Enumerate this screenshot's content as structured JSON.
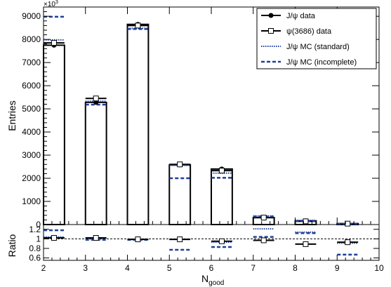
{
  "chart_data": [
    {
      "type": "bar",
      "panel": "main",
      "ylabel": "Entries",
      "yscale_label": "×10³",
      "xlim": [
        2,
        10
      ],
      "ylim": [
        0,
        9.4
      ],
      "x_ticks": [
        "2",
        "3",
        "4",
        "5",
        "6",
        "7",
        "8",
        "9",
        "10"
      ],
      "y_ticks": [
        "0",
        "1000",
        "2000",
        "3000",
        "4000",
        "5000",
        "6000",
        "7000",
        "8000",
        "9000"
      ],
      "categories": [
        "2",
        "3",
        "4",
        "5",
        "6",
        "7",
        "8",
        "9"
      ],
      "legend_position": "top-right",
      "series": [
        {
          "name": "J/ψ data",
          "marker": "filled-circle",
          "values": [
            7.75,
            5.28,
            8.65,
            2.58,
            2.4,
            0.3,
            0.16,
            0.04
          ]
        },
        {
          "name": "ψ(3686) data",
          "marker": "open-square",
          "values": [
            7.85,
            5.45,
            8.6,
            2.6,
            2.33,
            0.3,
            0.14,
            0.04
          ]
        },
        {
          "name": "J/ψ MC (standard)",
          "style": "dotted",
          "color": "#1f3f9a",
          "values": [
            7.98,
            5.33,
            8.48,
            2.56,
            2.22,
            0.37,
            0.18,
            0.04
          ]
        },
        {
          "name": "J/ψ MC (incomplete)",
          "style": "dashed",
          "color": "#1f3f9a",
          "values": [
            8.98,
            5.18,
            8.45,
            2.0,
            2.02,
            0.35,
            0.16,
            0.03
          ]
        }
      ]
    },
    {
      "type": "scatter",
      "panel": "ratio",
      "xlabel": "N_good",
      "ylabel": "Ratio",
      "xlim": [
        2,
        10
      ],
      "ylim": [
        0.55,
        1.3
      ],
      "y_ticks": [
        "0.6",
        "0.8",
        "1",
        "1.2"
      ],
      "reference_line": 1.0,
      "x": [
        2.25,
        3.25,
        4.25,
        5.25,
        6.25,
        7.25,
        8.25,
        9.25
      ],
      "series": [
        {
          "name": "ψ(3686) data",
          "marker": "open-square",
          "values": [
            1.02,
            1.02,
            0.99,
            0.99,
            0.95,
            0.97,
            0.89,
            0.93
          ]
        },
        {
          "name": "J/ψ MC (standard)",
          "style": "dotted",
          "color": "#1f3f9a",
          "values": [
            1.04,
            1.0,
            0.99,
            0.99,
            0.93,
            1.21,
            1.14,
            0.91
          ]
        },
        {
          "name": "J/ψ MC (incomplete)",
          "style": "dashed",
          "color": "#1f3f9a",
          "values": [
            1.18,
            0.98,
            0.98,
            0.77,
            0.83,
            1.04,
            1.12,
            0.67
          ]
        }
      ]
    }
  ],
  "axis_labels": {
    "main_y": "Entries",
    "ratio_y": "Ratio",
    "x_main": "N",
    "x_sub": "good",
    "scale_base": "×10",
    "scale_exp": "3"
  }
}
